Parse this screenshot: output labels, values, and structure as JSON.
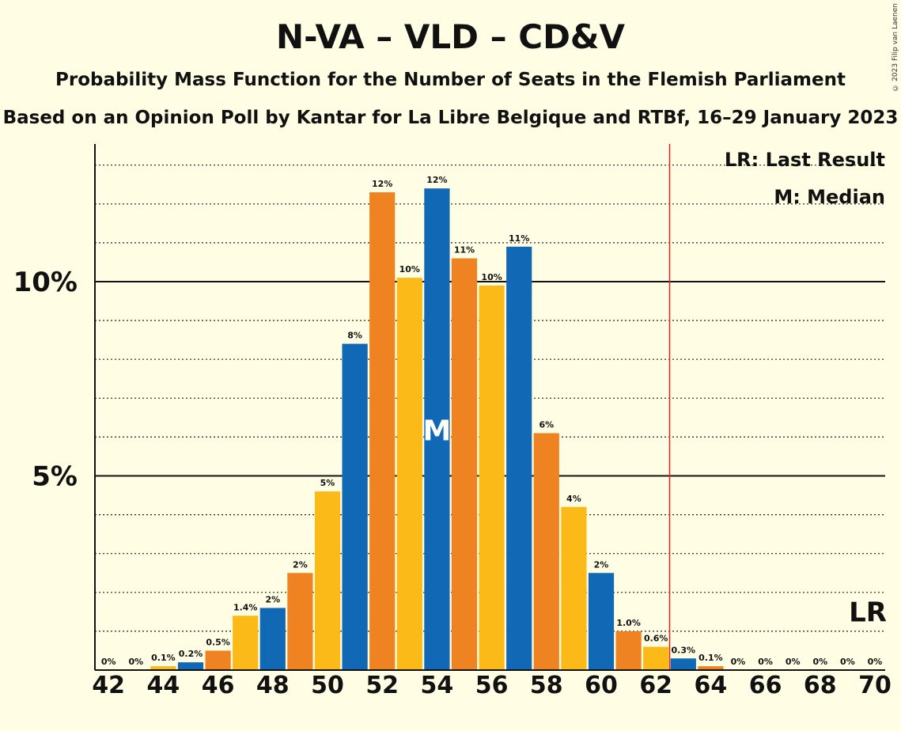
{
  "header": {
    "title": "N-VA – VLD – CD&V",
    "subtitle": "Probability Mass Function for the Number of Seats in the Flemish Parliament",
    "subtitle2": "Based on an Opinion Poll by Kantar for La Libre Belgique and RTBf, 16–29 January 2023",
    "copyright": "© 2023 Filip van Laenen"
  },
  "chart_data": {
    "type": "bar",
    "x": [
      42,
      43,
      44,
      45,
      46,
      47,
      48,
      49,
      50,
      51,
      52,
      53,
      54,
      55,
      56,
      57,
      58,
      59,
      60,
      61,
      62,
      63,
      64,
      65,
      66,
      67,
      68,
      69,
      70
    ],
    "values": [
      0,
      0,
      0.1,
      0.2,
      0.5,
      1.4,
      1.6,
      2.5,
      4.6,
      8.4,
      12.3,
      10.1,
      12.4,
      10.6,
      9.9,
      10.9,
      6.1,
      4.2,
      2.5,
      1.0,
      0.6,
      0.3,
      0.1,
      0,
      0,
      0,
      0,
      0,
      0
    ],
    "labels": [
      "0%",
      "0%",
      "0.1%",
      "0.2%",
      "0.5%",
      "1.4%",
      "2%",
      "2%",
      "5%",
      "8%",
      "12%",
      "10%",
      "12%",
      "11%",
      "10%",
      "11%",
      "6%",
      "4%",
      "2%",
      "1.0%",
      "0.6%",
      "0.3%",
      "0.1%",
      "0%",
      "0%",
      "0%",
      "0%",
      "0%",
      "0%"
    ],
    "colors": [
      "#1168B4",
      "#F08321",
      "#FBBA17"
    ],
    "x_tick_labels": [
      "42",
      "44",
      "46",
      "48",
      "50",
      "52",
      "54",
      "56",
      "58",
      "60",
      "62",
      "64",
      "66",
      "68",
      "70"
    ],
    "y_ticks": [
      5,
      10
    ],
    "y_tick_labels": [
      "5%",
      "10%"
    ],
    "ylim": [
      0,
      13.5
    ],
    "grid": "dotted every 1%",
    "last_result": 63,
    "last_result_color": "#E8241A",
    "median": 54,
    "median_marker": "M",
    "lr_marker": "LR",
    "legend": [
      "LR: Last Result",
      "M: Median"
    ],
    "legend_position": "top-right"
  }
}
